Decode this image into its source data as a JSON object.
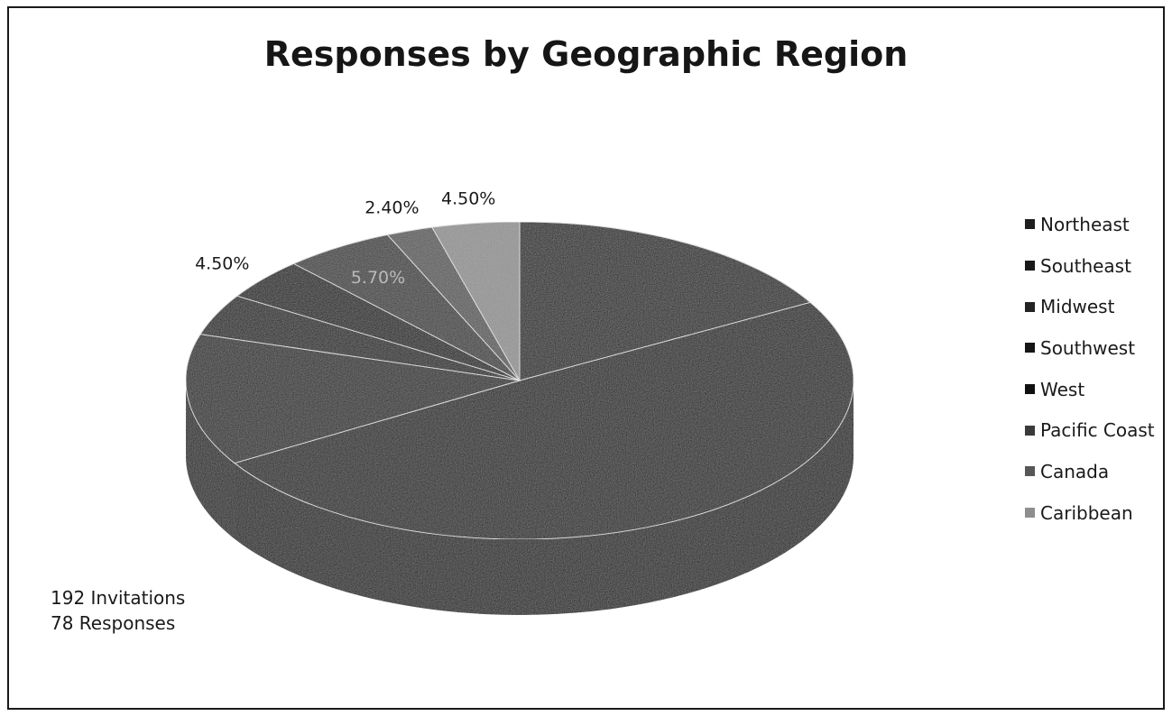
{
  "chart_data": {
    "type": "pie",
    "title": "Responses by Geographic Region",
    "style": "3d",
    "legend_position": "right",
    "categories": [
      "Northeast",
      "Southeast",
      "Midwest",
      "Southwest",
      "West",
      "Pacific Coast",
      "Canada",
      "Caribbean"
    ],
    "values": [
      17.9,
      52.7,
      14.3,
      4.5,
      4.5,
      5.7,
      2.4,
      4.5
    ],
    "labels": [
      "",
      "",
      "",
      "",
      "4.50%",
      "5.70%",
      "2.40%",
      "4.50%"
    ],
    "colors": [
      "#1f1f1f",
      "#191919",
      "#232323",
      "#161616",
      "#101010",
      "#3a3a3a",
      "#575757",
      "#8e8e8e"
    ]
  },
  "notes": {
    "invitations": "192 Invitations",
    "responses": "78 Responses"
  }
}
